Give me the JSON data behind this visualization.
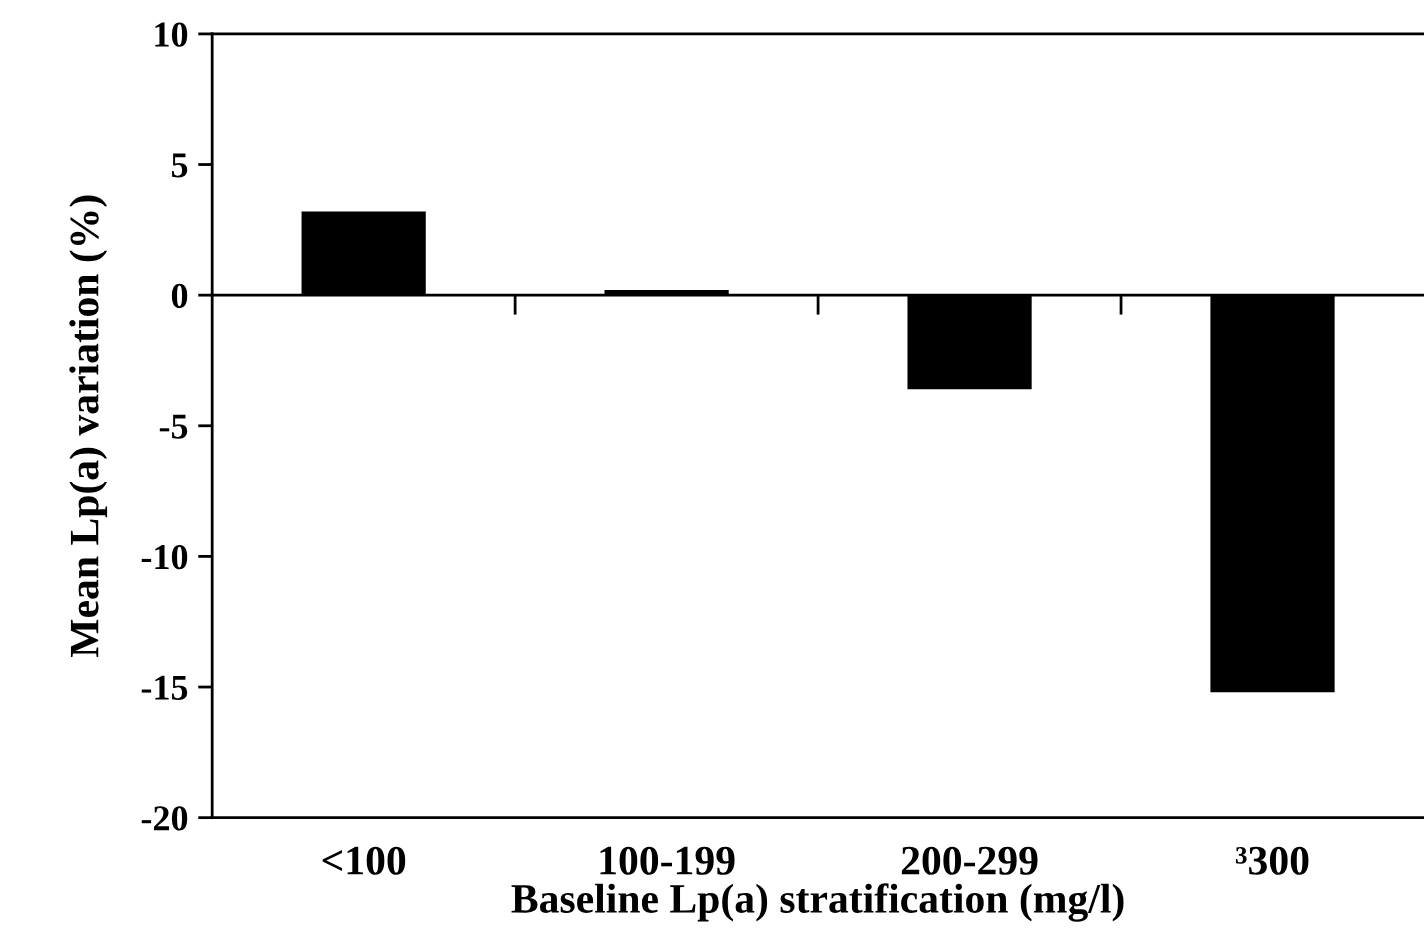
{
  "chart_data": {
    "type": "bar",
    "xlabel": "Baseline Lp(a) stratification (mg/l)",
    "ylabel": "Mean Lp(a) variation (%)",
    "categories": [
      "<100",
      "100-199",
      "200-299",
      "³300"
    ],
    "values": [
      3.2,
      0.2,
      -3.6,
      -15.2
    ],
    "color": "#000000",
    "ylim": [
      -20,
      10
    ],
    "yticks": [
      -20,
      -15,
      -10,
      -5,
      0,
      5,
      10
    ]
  }
}
